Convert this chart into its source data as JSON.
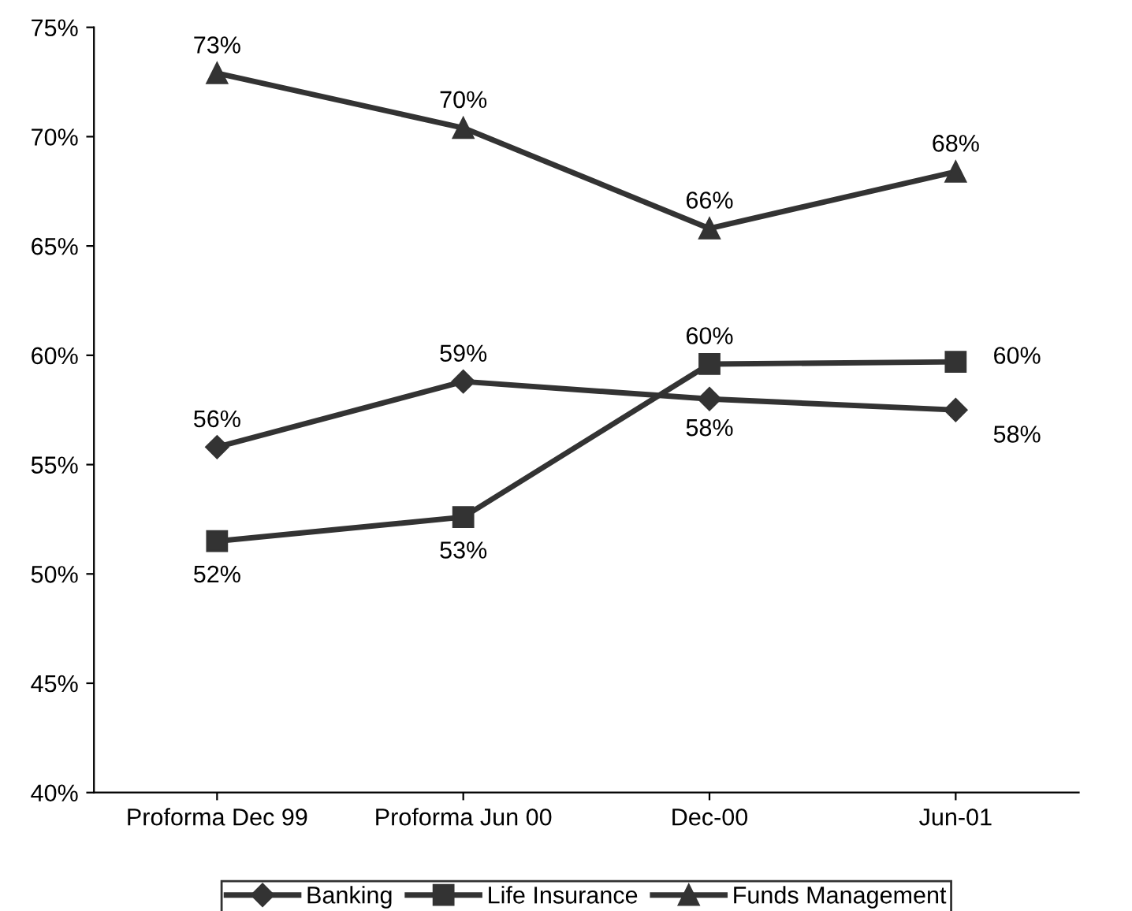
{
  "chart_data": {
    "type": "line",
    "categories": [
      "Proforma Dec 99",
      "Proforma Jun 00",
      "Dec-00",
      "Jun-01"
    ],
    "series": [
      {
        "name": "Banking",
        "color": "#333333",
        "marker": "diamond",
        "values": [
          55.8,
          58.8,
          58.0,
          57.5
        ],
        "value_labels": [
          "56%",
          "59%",
          "58%",
          "58%"
        ]
      },
      {
        "name": "Life Insurance",
        "color": "#333333",
        "marker": "square",
        "values": [
          51.5,
          52.6,
          59.6,
          59.7
        ],
        "value_labels": [
          "52%",
          "53%",
          "60%",
          "60%"
        ]
      },
      {
        "name": "Funds Management",
        "color": "#333333",
        "marker": "triangle",
        "values": [
          72.9,
          70.4,
          65.8,
          68.4
        ],
        "value_labels": [
          "73%",
          "70%",
          "66%",
          "68%"
        ]
      }
    ],
    "ylim": [
      40,
      75
    ],
    "yticks": [
      {
        "value": 40,
        "label": "40%"
      },
      {
        "value": 45,
        "label": "45%"
      },
      {
        "value": 50,
        "label": "50%"
      },
      {
        "value": 55,
        "label": "55%"
      },
      {
        "value": 60,
        "label": "60%"
      },
      {
        "value": 65,
        "label": "65%"
      },
      {
        "value": 70,
        "label": "70%"
      },
      {
        "value": 75,
        "label": "75%"
      }
    ],
    "grid": false,
    "legend": "bottom",
    "line_style": "solid"
  }
}
